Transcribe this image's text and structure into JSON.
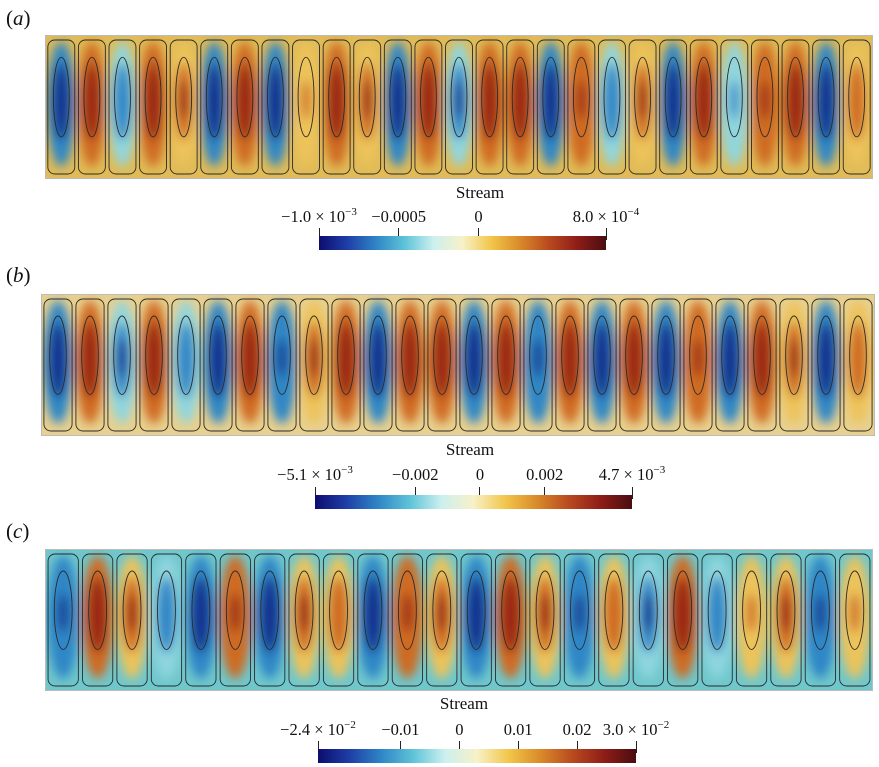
{
  "panels": [
    {
      "label_open": "(",
      "label_letter": "a",
      "label_close": ")",
      "colorbar": {
        "title": "Stream",
        "min": -0.001,
        "max": 0.0008,
        "ticks": [
          {
            "value": -0.001,
            "text": "−1.0 × 10",
            "exp": "−3"
          },
          {
            "value": -0.0005,
            "text": "−0.0005",
            "exp": ""
          },
          {
            "value": 0,
            "text": "0",
            "exp": ""
          },
          {
            "value": 0.0008,
            "text": "8.0 × 10",
            "exp": "−4"
          }
        ]
      }
    },
    {
      "label_open": "(",
      "label_letter": "b",
      "label_close": ")",
      "colorbar": {
        "title": "Stream",
        "min": -0.0051,
        "max": 0.0047,
        "ticks": [
          {
            "value": -0.0051,
            "text": "−5.1 × 10",
            "exp": "−3"
          },
          {
            "value": -0.002,
            "text": "−0.002",
            "exp": ""
          },
          {
            "value": 0,
            "text": "0",
            "exp": ""
          },
          {
            "value": 0.002,
            "text": "0.002",
            "exp": ""
          },
          {
            "value": 0.0047,
            "text": "4.7 × 10",
            "exp": "−3"
          }
        ]
      }
    },
    {
      "label_open": "(",
      "label_letter": "c",
      "label_close": ")",
      "colorbar": {
        "title": "Stream",
        "min": -0.024,
        "max": 0.03,
        "ticks": [
          {
            "value": -0.024,
            "text": "−2.4 × 10",
            "exp": "−2"
          },
          {
            "value": -0.01,
            "text": "−0.01",
            "exp": ""
          },
          {
            "value": 0,
            "text": "0",
            "exp": ""
          },
          {
            "value": 0.01,
            "text": "0.01",
            "exp": ""
          },
          {
            "value": 0.02,
            "text": "0.02",
            "exp": ""
          },
          {
            "value": 0.03,
            "text": "3.0 × 10",
            "exp": "−2"
          }
        ]
      }
    }
  ],
  "colormap": [
    "#0c0d6e",
    "#1f3fa8",
    "#2f86c6",
    "#5fc4d8",
    "#cdf0ee",
    "#f7f1c8",
    "#f2c64a",
    "#d98a2a",
    "#b94a1f",
    "#8e1d18",
    "#4a0d10"
  ]
}
